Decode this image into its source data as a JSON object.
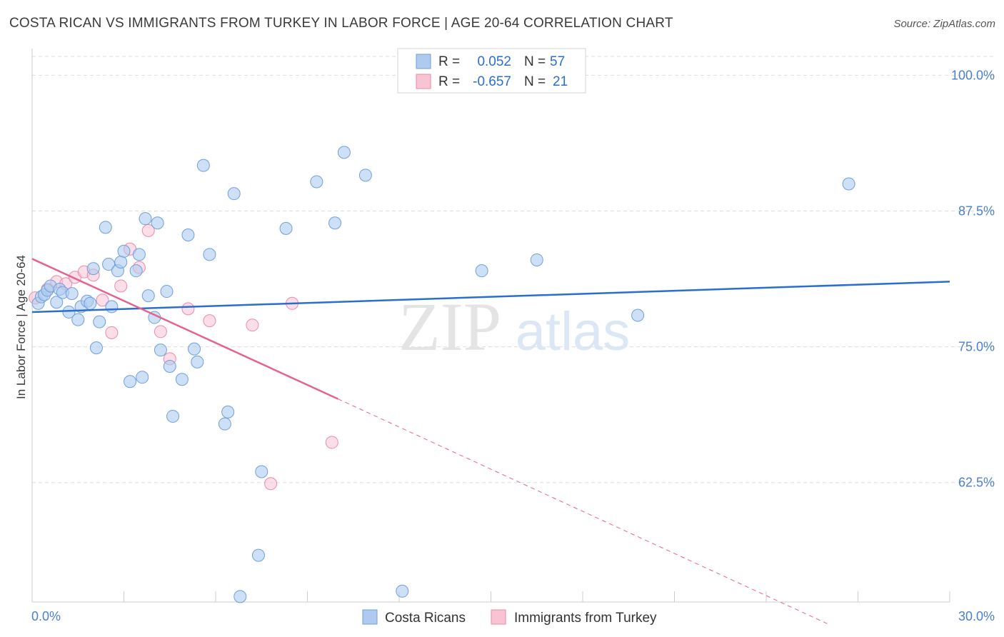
{
  "header": {
    "title": "COSTA RICAN VS IMMIGRANTS FROM TURKEY IN LABOR FORCE | AGE 20-64 CORRELATION CHART",
    "source": "Source: ZipAtlas.com"
  },
  "watermark": {
    "zip": "ZIP",
    "atlas": "atlas"
  },
  "colors": {
    "blue_fill": "#aecbef",
    "blue_stroke": "#6f9fdc",
    "blue_line": "#2a6fcf",
    "pink_fill": "#f8c3d3",
    "pink_stroke": "#ec8aa9",
    "pink_line": "#e5638e",
    "axis_text": "#4a7fd0",
    "grid": "#dddddd"
  },
  "legend": {
    "rows": [
      {
        "r_label": "R = ",
        "r_value": "0.052",
        "n_label": "N = ",
        "n_value": "57"
      },
      {
        "r_label": "R = ",
        "r_value": "-0.657",
        "n_label": "N = ",
        "n_value": "21"
      }
    ]
  },
  "bottom_legend": [
    "Costa Ricans",
    "Immigrants from Turkey"
  ],
  "chart_data": {
    "type": "scatter",
    "title": "COSTA RICAN VS IMMIGRANTS FROM TURKEY IN LABOR FORCE | AGE 20-64 CORRELATION CHART",
    "xlabel": "",
    "ylabel": "In Labor Force | Age 20-64",
    "xlim": [
      0,
      30
    ],
    "ylim": [
      51.5,
      102
    ],
    "x_tick_labels": [
      "0.0%",
      "30.0%"
    ],
    "y_ticks": [
      {
        "value": 100.0,
        "label": "100.0%"
      },
      {
        "value": 87.5,
        "label": "87.5%"
      },
      {
        "value": 75.0,
        "label": "75.0%"
      },
      {
        "value": 62.5,
        "label": "62.5%"
      }
    ],
    "series": [
      {
        "name": "Costa Ricans",
        "color": "#aecbef",
        "r": 0.052,
        "n": 57,
        "trend": {
          "x": [
            0,
            30
          ],
          "y": [
            78.2,
            81.0
          ],
          "style": "solid"
        },
        "points": [
          [
            0.2,
            79.0
          ],
          [
            0.3,
            79.6
          ],
          [
            0.4,
            79.8
          ],
          [
            0.5,
            80.2
          ],
          [
            0.6,
            80.6
          ],
          [
            0.8,
            79.1
          ],
          [
            0.9,
            80.3
          ],
          [
            1.0,
            80.0
          ],
          [
            1.2,
            78.2
          ],
          [
            1.3,
            79.9
          ],
          [
            1.5,
            77.5
          ],
          [
            1.6,
            78.7
          ],
          [
            1.8,
            79.2
          ],
          [
            1.9,
            79.0
          ],
          [
            2.0,
            82.2
          ],
          [
            2.1,
            74.9
          ],
          [
            2.2,
            77.3
          ],
          [
            2.4,
            86.0
          ],
          [
            2.5,
            82.6
          ],
          [
            2.6,
            78.7
          ],
          [
            2.8,
            82.0
          ],
          [
            2.9,
            82.8
          ],
          [
            3.0,
            83.8
          ],
          [
            3.2,
            71.8
          ],
          [
            3.4,
            82.0
          ],
          [
            3.5,
            83.5
          ],
          [
            3.6,
            72.2
          ],
          [
            3.7,
            86.8
          ],
          [
            3.8,
            79.7
          ],
          [
            4.0,
            77.7
          ],
          [
            4.1,
            86.4
          ],
          [
            4.2,
            74.7
          ],
          [
            4.4,
            80.1
          ],
          [
            4.5,
            73.2
          ],
          [
            4.6,
            68.6
          ],
          [
            4.9,
            72.0
          ],
          [
            5.1,
            85.3
          ],
          [
            5.3,
            74.8
          ],
          [
            5.4,
            73.6
          ],
          [
            5.6,
            91.7
          ],
          [
            5.8,
            83.5
          ],
          [
            6.3,
            67.9
          ],
          [
            6.4,
            69.0
          ],
          [
            6.6,
            89.1
          ],
          [
            6.8,
            52.0
          ],
          [
            7.4,
            55.8
          ],
          [
            7.5,
            63.5
          ],
          [
            8.3,
            85.9
          ],
          [
            9.3,
            90.2
          ],
          [
            9.9,
            86.4
          ],
          [
            10.2,
            92.9
          ],
          [
            10.9,
            90.8
          ],
          [
            12.1,
            52.5
          ],
          [
            14.7,
            82.0
          ],
          [
            16.5,
            83.0
          ],
          [
            19.8,
            77.9
          ],
          [
            26.7,
            90.0
          ]
        ]
      },
      {
        "name": "Immigrants from Turkey",
        "color": "#f8c3d3",
        "r": -0.657,
        "n": 21,
        "trend": {
          "x": [
            0,
            10.0,
            26.0
          ],
          "y": [
            83.1,
            70.2,
            49.5
          ],
          "style": "solid-then-dashed"
        },
        "points": [
          [
            0.1,
            79.5
          ],
          [
            0.5,
            80.3
          ],
          [
            0.8,
            81.0
          ],
          [
            1.1,
            80.8
          ],
          [
            1.4,
            81.4
          ],
          [
            1.7,
            81.9
          ],
          [
            2.0,
            81.6
          ],
          [
            2.3,
            79.3
          ],
          [
            2.6,
            76.3
          ],
          [
            2.9,
            80.6
          ],
          [
            3.2,
            84.0
          ],
          [
            3.5,
            82.3
          ],
          [
            3.8,
            85.7
          ],
          [
            4.2,
            76.4
          ],
          [
            4.5,
            73.9
          ],
          [
            5.1,
            78.5
          ],
          [
            5.8,
            77.4
          ],
          [
            7.2,
            77.0
          ],
          [
            7.8,
            62.4
          ],
          [
            8.5,
            79.0
          ],
          [
            9.8,
            66.2
          ]
        ]
      }
    ]
  }
}
